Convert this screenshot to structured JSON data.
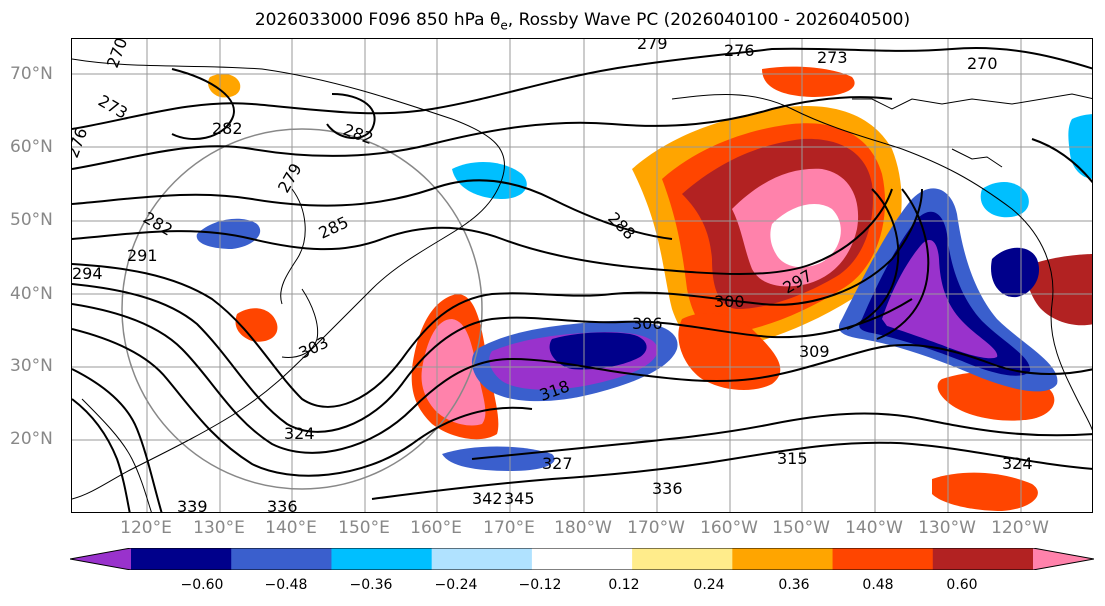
{
  "map": {
    "title_main": "2026033000 F096 850 hPa θ",
    "title_sub": "e",
    "title_rest": ", Rossby Wave PC (2026040100 - 2026040500)",
    "lat_labels": [
      "70°N",
      "60°N",
      "50°N",
      "40°N",
      "30°N",
      "20°N"
    ],
    "lon_labels": [
      "120°E",
      "130°E",
      "140°E",
      "150°E",
      "160°E",
      "170°E",
      "180°W",
      "170°W",
      "160°W",
      "150°W",
      "140°W",
      "130°W",
      "120°W"
    ],
    "contour_labels": [
      "270",
      "279",
      "276",
      "273",
      "270",
      "273",
      "276",
      "282",
      "282",
      "279",
      "285",
      "282",
      "291",
      "288",
      "294",
      "300",
      "297",
      "306",
      "309",
      "303",
      "318",
      "324",
      "327",
      "315",
      "324",
      "336",
      "342",
      "345",
      "339",
      "336"
    ]
  },
  "colorbar": {
    "colors": [
      "#9932CC",
      "#00008B",
      "#3A5FCD",
      "#00BFFF",
      "#B0E2FF",
      "#FFFFFF",
      "#FFEC8B",
      "#FFA500",
      "#FF4500",
      "#B22222",
      "#FF82AB"
    ],
    "ticks": [
      "−0.60",
      "−0.48",
      "−0.36",
      "−0.24",
      "−0.12",
      "0.12",
      "0.24",
      "0.36",
      "0.48",
      "0.60"
    ]
  }
}
